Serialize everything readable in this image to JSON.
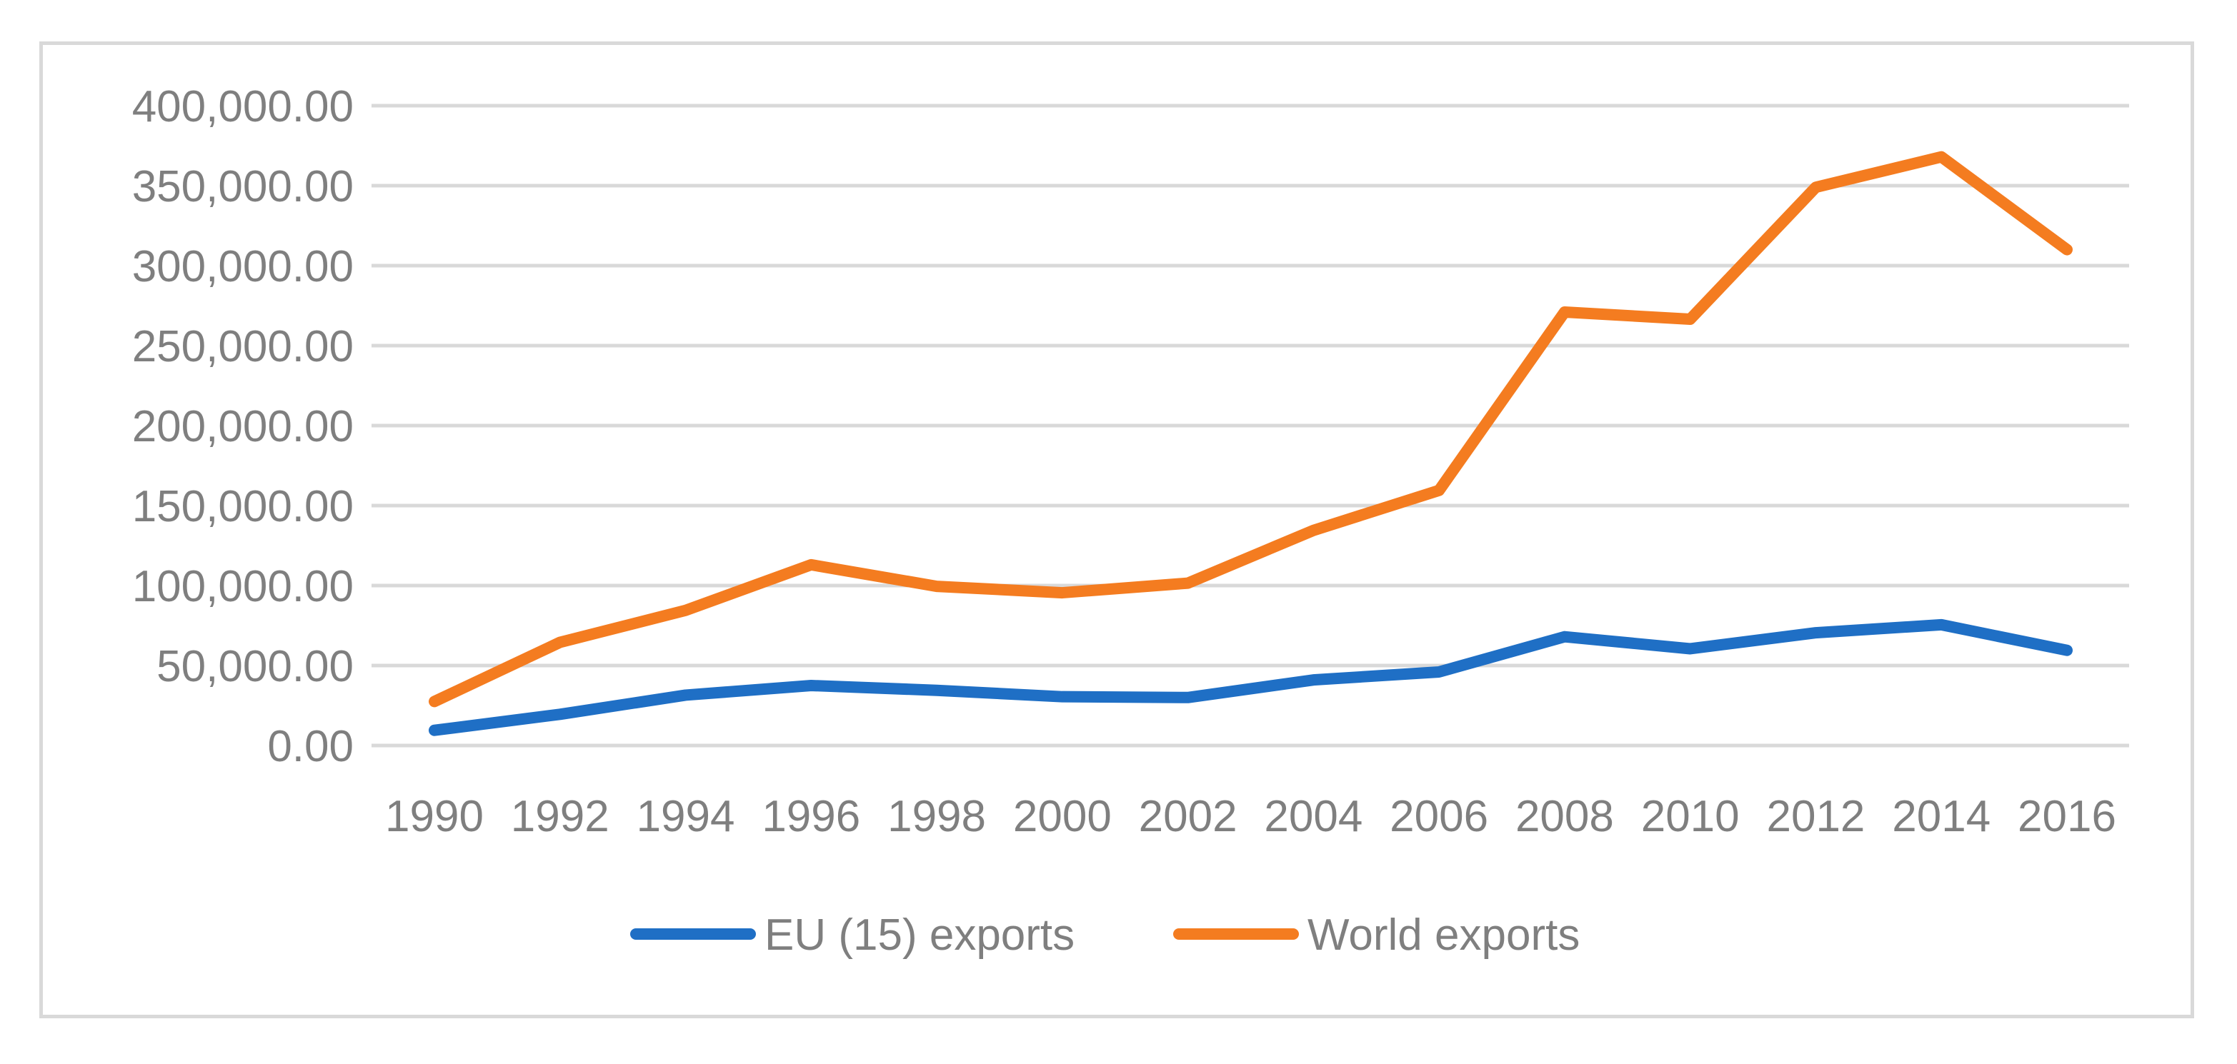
{
  "chart_data": {
    "type": "line",
    "title": "",
    "xlabel": "",
    "ylabel": "",
    "x": [
      "1990",
      "1992",
      "1994",
      "1996",
      "1998",
      "2000",
      "2002",
      "2004",
      "2006",
      "2008",
      "2010",
      "2012",
      "2014",
      "2016"
    ],
    "ylim": [
      0,
      400000
    ],
    "y_ticks": [
      "0.00",
      "50,000.00",
      "100,000.00",
      "150,000.00",
      "200,000.00",
      "250,000.00",
      "300,000.00",
      "350,000.00",
      "400,000.00"
    ],
    "y_tick_values": [
      0,
      50000,
      100000,
      150000,
      200000,
      250000,
      300000,
      350000,
      400000
    ],
    "grid": true,
    "legend_position": "bottom",
    "series": [
      {
        "name": "EU (15) exports",
        "color": "#1f6fc5",
        "values": [
          9500,
          19500,
          31500,
          37500,
          34500,
          30500,
          30000,
          41000,
          46000,
          68000,
          60500,
          70500,
          75500,
          59500
        ]
      },
      {
        "name": "World exports",
        "color": "#f47c20",
        "values": [
          27500,
          64500,
          84500,
          113000,
          99500,
          95500,
          101500,
          134500,
          159500,
          271000,
          266500,
          349000,
          368000,
          310000
        ]
      }
    ]
  }
}
